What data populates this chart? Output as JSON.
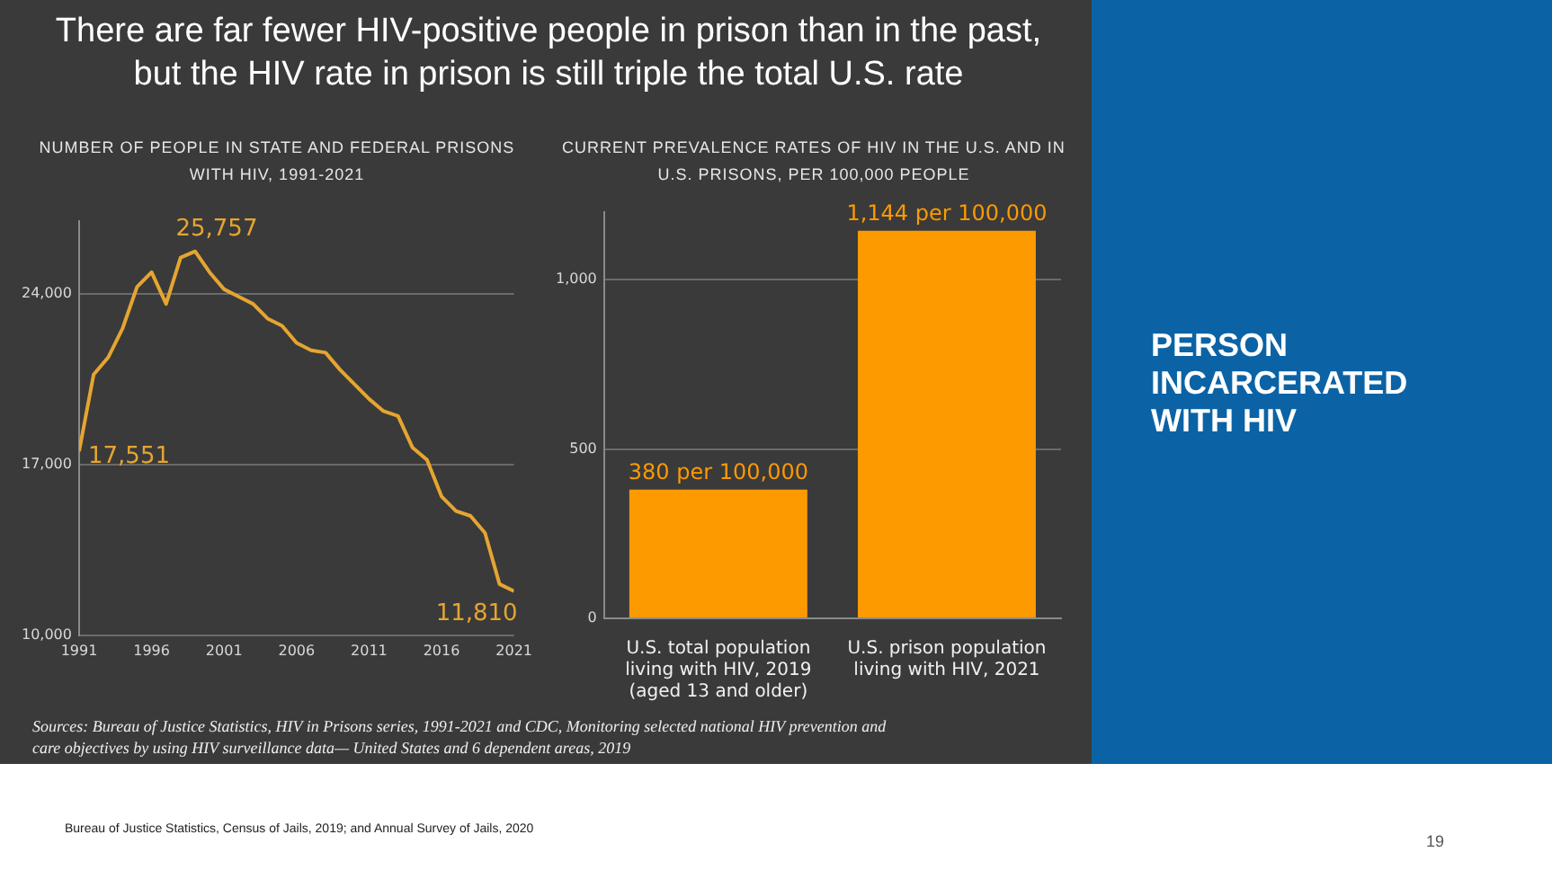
{
  "chart_data": [
    {
      "type": "other",
      "title": "There are far fewer HIV-positive people in prison than in the past, but the HIV rate in prison is still triple the total U.S. rate",
      "annotations": [
        "PERSON INCARCERATED WITH HIV",
        "Sources: Bureau of Justice Statistics, HIV in Prisons series, 1991-2021 and CDC, Monitoring selected national HIV prevention and care objectives by using HIV surveillance data— United States and 6 dependent areas, 2019",
        "Bureau of Justice Statistics, Census of Jails, 2019; and Annual Survey of Jails, 2020",
        "19"
      ]
    },
    {
      "type": "line",
      "title": "NUMBER OF PEOPLE IN STATE AND FEDERAL PRISONS WITH HIV, 1991-2021",
      "x": [
        1991,
        1992,
        1993,
        1994,
        1995,
        1996,
        1997,
        1998,
        1999,
        2000,
        2001,
        2002,
        2003,
        2004,
        2005,
        2006,
        2007,
        2008,
        2009,
        2010,
        2011,
        2012,
        2013,
        2014,
        2015,
        2016,
        2017,
        2018,
        2019,
        2020,
        2021
      ],
      "values": [
        17551,
        20700,
        21400,
        22600,
        24300,
        24900,
        23600,
        25500,
        25757,
        24900,
        24200,
        23900,
        23600,
        23000,
        22700,
        22000,
        21700,
        21600,
        20900,
        20300,
        19700,
        19200,
        19000,
        17700,
        17200,
        15700,
        15100,
        14900,
        14200,
        12100,
        11810
      ],
      "color": "#e5a531",
      "marker": "none",
      "xlim": [
        1991,
        2021
      ],
      "xticks": [
        1991,
        1996,
        2001,
        2006,
        2011,
        2016,
        2021
      ],
      "ylim": [
        10000,
        27000
      ],
      "yticks": [
        {
          "value": 10000,
          "label": "10,000"
        },
        {
          "value": 17000,
          "label": "17,000"
        },
        {
          "value": 24000,
          "label": "24,000"
        }
      ],
      "grid": "y",
      "annotations": [
        {
          "text": "17,551",
          "x": 1991,
          "y": 17551
        },
        {
          "text": "25,757",
          "x": 1999,
          "y": 25757
        },
        {
          "text": "11,810",
          "x": 2021,
          "y": 11810
        }
      ]
    },
    {
      "type": "bar",
      "title": "CURRENT PREVALENCE RATES OF HIV IN THE U.S. AND IN U.S. PRISONS, PER 100,000 PEOPLE",
      "categories": [
        "U.S. total population\nliving with HIV, 2019\n(aged 13 and older)",
        "U.S. prison population\nliving with HIV, 2021"
      ],
      "values": [
        380,
        1144
      ],
      "value_labels": [
        "380 per 100,000",
        "1,144 per 100,000"
      ],
      "color": "#fd9a00",
      "ylim": [
        0,
        1200
      ],
      "yticks": [
        0,
        500,
        {
          "value": 1000,
          "label": "1,000"
        }
      ],
      "grid": "y"
    }
  ]
}
